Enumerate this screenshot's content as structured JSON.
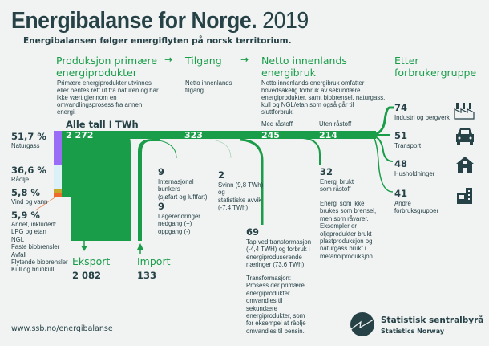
{
  "header": {
    "title": "Energibalanse for Norge.",
    "year": "2019",
    "subtitle": "Energibalansen følger energiflyten på norsk territorium."
  },
  "columns": [
    {
      "title": "Produksjon primære energiprodukter",
      "desc": "Primære energiprodukter utvinnes eller hentes rett ut fra naturen og har ikke vært gjennom en omvandlingsprosess fra annen energi."
    },
    {
      "title": "Tilgang",
      "desc": "Netto innenlands tilgang"
    },
    {
      "title": "Netto innenlands energibruk",
      "desc": "Netto innenlands energibruk omfatter hovedsakelig forbruk av sekundære energiprodukter, samt biobrensel, naturgass, kull og NGL/etan som også går til sluttforbruk."
    },
    {
      "title": "Etter forbrukergruppe"
    }
  ],
  "unit_note": "Alle tall I TWh",
  "flow_values": {
    "production": "2 272",
    "supply": "323",
    "with_feedstock": "245",
    "without_feedstock": "214"
  },
  "flow_labels": {
    "with_feedstock": "Med råstoff",
    "without_feedstock": "Uten råstoff"
  },
  "production_mix": [
    {
      "pct": "51,7 %",
      "label": "Naturgass",
      "color": "#9b6cf5"
    },
    {
      "pct": "36,6 %",
      "label": "Råolje",
      "color": "#dcf0f7"
    },
    {
      "pct": "5,8 %",
      "label": "Vind og vann",
      "color": "#c8a82a"
    },
    {
      "pct": "5,9 %",
      "label": "Annet, inkludert:",
      "color": "#ee6b2e",
      "items": [
        "LPG og etan",
        "NGL",
        "Faste biobrensler",
        "Avfall",
        "Flytende biobrensler",
        "Kull og brunkull"
      ]
    }
  ],
  "export": {
    "label": "Eksport",
    "value": "2 082"
  },
  "import": {
    "label": "Import",
    "value": "133"
  },
  "bunkers": {
    "value": "9",
    "lines": [
      "Internasjonal",
      "bunkers",
      "(sjøfart og luftfart)"
    ]
  },
  "stock": {
    "value": "9",
    "lines": [
      "Lagerendringer",
      "nedgang (+)",
      "oppgang (-)"
    ]
  },
  "losses": {
    "value": "2",
    "lines": [
      "Svinn (9,8 TWh)",
      "og",
      "statistiske avvik",
      "(-7,4 TWh)"
    ]
  },
  "transformation": {
    "value": "69",
    "lines": [
      "Tap ved transformasjon",
      "(-4,4 TWH) og forbruk i",
      "energiproduserende",
      "næringer (73,6 TWh)"
    ],
    "note": [
      "Transformasjon:",
      "Prosess der primære",
      "energiprodukter",
      "omvandles til",
      "sekundære",
      "energiprodukter, som",
      "for eksempel at råolje",
      "omvandles til bensin."
    ]
  },
  "feedstock": {
    "value": "32",
    "lines": [
      "Energi brukt",
      "som råstoff"
    ],
    "note": [
      "Energi som ikke",
      "brukes som brensel,",
      "men som råvarer.",
      "Eksempler er",
      "oljeprodukter brukt i",
      "plastproduksjon og",
      "naturgass brukt i",
      "metanolproduksjon."
    ]
  },
  "groups": [
    {
      "value": "74",
      "label": "Industri og bergverk",
      "icon": "factory-icon"
    },
    {
      "value": "51",
      "label": "Transport",
      "icon": "car-icon"
    },
    {
      "value": "48",
      "label": "Husholdninger",
      "icon": "house-icon"
    },
    {
      "value": "41",
      "label": "Andre",
      "label2": "forbruksgrupper",
      "icon": "building-icon"
    }
  ],
  "footer": {
    "url": "www.ssb.no/energibalanse",
    "org": "Statistisk sentralbyrå",
    "org_en": "Statistics Norway"
  },
  "colors": {
    "flow": "#1a9d49",
    "text": "#274247",
    "background": "#f1f3f3"
  }
}
